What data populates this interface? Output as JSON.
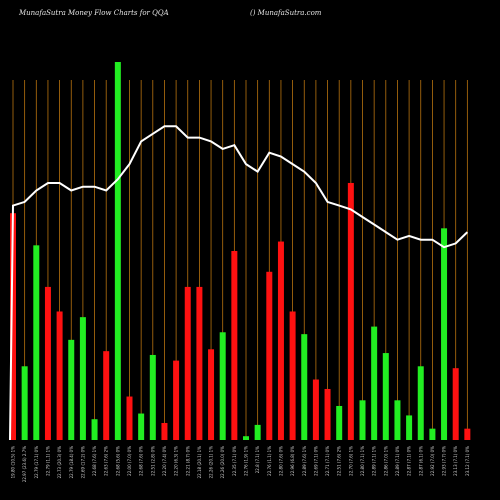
{
  "header": {
    "left": "MunafaSutra  Money Flow  Charts for QQA",
    "right": "() MunafaSutra.com"
  },
  "chart_data": {
    "type": "bar",
    "title": "MunafaSutra  Money Flow  Charts for QQA",
    "colors": {
      "green": "#22ee22",
      "red": "#ff1111",
      "line": "#ffffff",
      "grid": "#b8730f"
    },
    "ylim": [
      0,
      100
    ],
    "bars": [
      {
        "label": "19.80 (10.5) 1%",
        "value": 60,
        "color": "red"
      },
      {
        "label": "22.97 (23.6) 2.7%",
        "value": 19.5,
        "color": "green"
      },
      {
        "label": "22.79 (17.1) 0%",
        "value": 51.5,
        "color": "green"
      },
      {
        "label": "22.79 (1.1) 1%",
        "value": 40.5,
        "color": "red"
      },
      {
        "label": "22.73 (20.3) 0%",
        "value": 34,
        "color": "red"
      },
      {
        "label": "22.79 (18.4) 0%",
        "value": 26.5,
        "color": "green"
      },
      {
        "label": "22.69 (17.2) 0%",
        "value": 32.5,
        "color": "green"
      },
      {
        "label": "22.68 (7.6) 1%",
        "value": 5.5,
        "color": "green"
      },
      {
        "label": "22.63 (7.6) 2%",
        "value": 23.5,
        "color": "red"
      },
      {
        "label": "22.68 (5.6) 0%",
        "value": 100,
        "color": "green"
      },
      {
        "label": "22.00 (7.0) 0%",
        "value": 11.5,
        "color": "red"
      },
      {
        "label": "22.68 (7.6) 0%",
        "value": 7,
        "color": "green"
      },
      {
        "label": "22.51 (2.8) 0%",
        "value": 22.5,
        "color": "green"
      },
      {
        "label": "22.20 (7.4) 0%",
        "value": 4.5,
        "color": "red"
      },
      {
        "label": "22.20 (6.3) 1%",
        "value": 21,
        "color": "red"
      },
      {
        "label": "22.21 (8.7) 0%",
        "value": 40.5,
        "color": "red"
      },
      {
        "label": "22.18 (20.1) 1%",
        "value": 40.5,
        "color": "red"
      },
      {
        "label": "22.26 (20.1) 1%",
        "value": 24,
        "color": "red"
      },
      {
        "label": "22.26 (20.0) 0%",
        "value": 28.5,
        "color": "green"
      },
      {
        "label": "22.35 (7.1) 0%",
        "value": 50,
        "color": "red"
      },
      {
        "label": "22.76 (1.9) 1%",
        "value": 1,
        "color": "green"
      },
      {
        "label": "22.8 (7.1) 1%",
        "value": 4,
        "color": "green"
      },
      {
        "label": "22.76 (1.1) 1%",
        "value": 44.5,
        "color": "red"
      },
      {
        "label": "22.80 (7.6) 0%",
        "value": 52.5,
        "color": "red"
      },
      {
        "label": "22.96 (6.8) 0%",
        "value": 34,
        "color": "red"
      },
      {
        "label": "22.89 (7.6) 1%",
        "value": 28,
        "color": "green"
      },
      {
        "label": "22.69 (7.1) 0%",
        "value": 16,
        "color": "red"
      },
      {
        "label": "22.71 (7.1) 0%",
        "value": 13.5,
        "color": "red"
      },
      {
        "label": "22.51 (7.6) 2%",
        "value": 9,
        "color": "green"
      },
      {
        "label": "22.70 (7.6) 1%",
        "value": 68,
        "color": "red"
      },
      {
        "label": "22.80 (7.1) 1%",
        "value": 10.5,
        "color": "green"
      },
      {
        "label": "22.89 (7.1) 1%",
        "value": 30,
        "color": "green"
      },
      {
        "label": "22.86 (7.0) 1%",
        "value": 23,
        "color": "green"
      },
      {
        "label": "22.89 (7.1) 0%",
        "value": 10.5,
        "color": "green"
      },
      {
        "label": "22.87 (7.1) 0%",
        "value": 6.5,
        "color": "green"
      },
      {
        "label": "22.87 (6.1) 0%",
        "value": 19.5,
        "color": "green"
      },
      {
        "label": "22.92 (7.0) 0%",
        "value": 3,
        "color": "green"
      },
      {
        "label": "22.93 (7.7) 0%",
        "value": 56,
        "color": "green"
      },
      {
        "label": "23.13 (7.1) 0%",
        "value": 19,
        "color": "red"
      },
      {
        "label": "23.12 (7.1) 0%",
        "value": 3,
        "color": "red"
      }
    ],
    "line": [
      62,
      63,
      66,
      68,
      68,
      66,
      67,
      67,
      66,
      69,
      73,
      79,
      81,
      83,
      83,
      80,
      80,
      79,
      77,
      78,
      73,
      71,
      76,
      75,
      73,
      71,
      68,
      63,
      62,
      61,
      59,
      57,
      55,
      53,
      54,
      53,
      53,
      51,
      52,
      55
    ]
  }
}
